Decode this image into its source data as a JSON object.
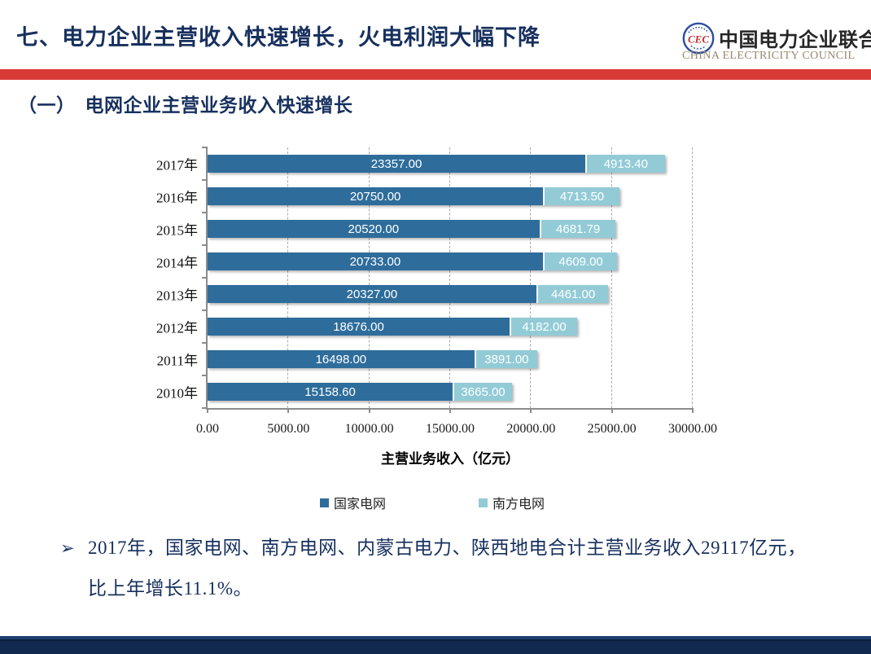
{
  "header": {
    "title": "七、电力企业主营收入快速增长，火电利润大幅下降",
    "logo": {
      "org_cn": "中国电力企业联合会",
      "org_en": "CHINA ELECTRICITY COUNCIL"
    }
  },
  "section_heading": "（一）　电网企业主营业务收入快速增长",
  "chart_data": {
    "type": "bar",
    "orientation": "horizontal",
    "stacked": true,
    "categories": [
      "2017年",
      "2016年",
      "2015年",
      "2014年",
      "2013年",
      "2012年",
      "2011年",
      "2010年"
    ],
    "series": [
      {
        "name": "国家电网",
        "color": "#2E6D9B",
        "values": [
          23357.0,
          20750.0,
          20520.0,
          20733.0,
          20327.0,
          18676.0,
          16498.0,
          15158.6
        ]
      },
      {
        "name": "南方电网",
        "color": "#92CBD6",
        "values": [
          4913.4,
          4713.5,
          4681.79,
          4609.0,
          4461.0,
          4182.0,
          3891.0,
          3665.0
        ]
      }
    ],
    "xlabel": "主营业务收入（亿元）",
    "xlim": [
      0,
      30000
    ],
    "xticks": [
      0,
      5000,
      10000,
      15000,
      20000,
      25000,
      30000
    ],
    "xtick_labels": [
      "0.00",
      "5000.00",
      "10000.00",
      "15000.00",
      "20000.00",
      "25000.00",
      "30000.00"
    ],
    "value_label_decimals": 2,
    "grid": "vertical-dashed",
    "legend_position": "bottom"
  },
  "bullet": {
    "marker": "➢",
    "lines": [
      "2017年，国家电网、南方电网、内蒙古电力、陕西地电合计主营业务收入29117亿元，",
      "比上年增长11.1%。"
    ]
  },
  "colors": {
    "title_navy": "#17305E",
    "red_band": "#D93A35",
    "bar_dark": "#2E6D9B",
    "bar_light": "#92CBD6",
    "footer_navy": "#11294E"
  }
}
